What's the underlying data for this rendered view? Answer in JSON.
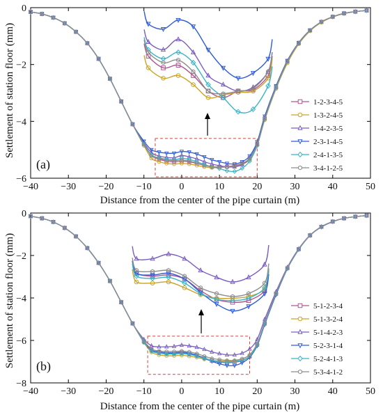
{
  "figure": {
    "xlabel": "Distance from the center of the pipe curtain (m)",
    "ylabel": "Settlement of station floor (mm)"
  },
  "chart_data": [
    {
      "type": "line",
      "panel_label": "(a)",
      "xlabel": "Distance from the center of the pipe curtain (m)",
      "ylabel": "Settlement of station floor (mm)",
      "xlim": [
        -40,
        50
      ],
      "ylim": [
        -6,
        0
      ],
      "xticks": [
        -40,
        -30,
        -20,
        -10,
        0,
        10,
        20,
        30,
        40,
        50
      ],
      "yticks": [
        0,
        -2,
        -4,
        -6
      ],
      "legend_position": "center-right",
      "highlight_box": {
        "x": [
          -7,
          20
        ],
        "y": [
          -4.6,
          -5.95
        ]
      },
      "inset": {
        "x_range": [
          -7,
          20
        ],
        "y_range": [
          -5.1,
          -5.8
        ],
        "series": [
          {
            "name": "1-2-3-4-5",
            "values": [
              -5.33,
              -5.42,
              -5.4,
              -5.48,
              -5.6,
              -5.65,
              -5.6,
              -5.59,
              -5.48
            ]
          },
          {
            "name": "1-3-2-4-5",
            "values": [
              -5.42,
              -5.5,
              -5.48,
              -5.55,
              -5.65,
              -5.63,
              -5.61,
              -5.6,
              -5.5
            ]
          },
          {
            "name": "1-4-2-3-5",
            "values": [
              -5.22,
              -5.28,
              -5.2,
              -5.3,
              -5.48,
              -5.55,
              -5.6,
              -5.57,
              -5.45
            ]
          },
          {
            "name": "2-3-1-4-5",
            "values": [
              -5.08,
              -5.12,
              -5.05,
              -5.1,
              -5.28,
              -5.42,
              -5.5,
              -5.46,
              -5.35
            ]
          },
          {
            "name": "2-4-1-3-5",
            "values": [
              -5.28,
              -5.35,
              -5.3,
              -5.38,
              -5.55,
              -5.65,
              -5.76,
              -5.74,
              -5.56
            ]
          },
          {
            "name": "3-4-1-2-5",
            "values": [
              -5.3,
              -5.38,
              -5.36,
              -5.45,
              -5.6,
              -5.62,
              -5.6,
              -5.58,
              -5.45
            ]
          }
        ]
      },
      "x": [
        -40,
        -37,
        -34,
        -31,
        -28,
        -25,
        -22,
        -19,
        -16,
        -13,
        -10,
        -8,
        -6,
        -4,
        -2,
        0,
        2,
        4,
        6,
        8,
        10,
        12,
        14,
        16,
        18,
        20,
        22,
        25,
        28,
        31,
        34,
        37,
        40,
        43,
        46,
        49
      ],
      "series": [
        {
          "name": "1-2-3-4-5",
          "color": "#b0538f",
          "marker": "square",
          "values": [
            -0.15,
            -0.22,
            -0.35,
            -0.55,
            -0.85,
            -1.25,
            -1.8,
            -2.5,
            -3.3,
            -4.1,
            -4.8,
            -5.2,
            -5.33,
            -5.4,
            -5.42,
            -5.4,
            -5.42,
            -5.48,
            -5.55,
            -5.6,
            -5.6,
            -5.59,
            -5.55,
            -5.48,
            -5.3,
            -4.8,
            -3.9,
            -2.8,
            -1.9,
            -1.25,
            -0.8,
            -0.5,
            -0.32,
            -0.2,
            -0.14,
            -0.1
          ]
        },
        {
          "name": "1-3-2-4-5",
          "color": "#c9a227",
          "marker": "circle",
          "values": [
            -0.15,
            -0.22,
            -0.35,
            -0.55,
            -0.85,
            -1.25,
            -1.8,
            -2.5,
            -3.3,
            -4.1,
            -4.85,
            -5.3,
            -5.42,
            -5.48,
            -5.5,
            -5.48,
            -5.5,
            -5.55,
            -5.6,
            -5.63,
            -5.62,
            -5.6,
            -5.58,
            -5.5,
            -5.35,
            -4.85,
            -3.95,
            -2.85,
            -1.95,
            -1.28,
            -0.82,
            -0.52,
            -0.33,
            -0.21,
            -0.14,
            -0.1
          ]
        },
        {
          "name": "1-4-2-3-5",
          "color": "#7a5cc0",
          "marker": "triangle",
          "values": [
            -0.15,
            -0.22,
            -0.35,
            -0.55,
            -0.85,
            -1.25,
            -1.8,
            -2.5,
            -3.3,
            -4.1,
            -4.75,
            -5.1,
            -5.22,
            -5.27,
            -5.28,
            -5.2,
            -5.25,
            -5.32,
            -5.42,
            -5.5,
            -5.56,
            -5.6,
            -5.6,
            -5.52,
            -5.3,
            -4.78,
            -3.88,
            -2.78,
            -1.88,
            -1.24,
            -0.8,
            -0.5,
            -0.32,
            -0.2,
            -0.14,
            -0.1
          ]
        },
        {
          "name": "2-3-1-4-5",
          "color": "#2e5bd6",
          "marker": "triangle-down",
          "values": [
            -0.15,
            -0.22,
            -0.35,
            -0.55,
            -0.85,
            -1.25,
            -1.8,
            -2.5,
            -3.3,
            -4.1,
            -4.7,
            -5.0,
            -5.08,
            -5.12,
            -5.12,
            -5.06,
            -5.08,
            -5.15,
            -5.25,
            -5.35,
            -5.42,
            -5.48,
            -5.5,
            -5.42,
            -5.22,
            -4.72,
            -3.82,
            -2.75,
            -1.86,
            -1.23,
            -0.79,
            -0.5,
            -0.32,
            -0.2,
            -0.14,
            -0.1
          ]
        },
        {
          "name": "2-4-1-3-5",
          "color": "#37b3c7",
          "marker": "diamond",
          "values": [
            -0.15,
            -0.22,
            -0.35,
            -0.55,
            -0.85,
            -1.25,
            -1.8,
            -2.5,
            -3.3,
            -4.1,
            -4.8,
            -5.18,
            -5.28,
            -5.33,
            -5.35,
            -5.3,
            -5.34,
            -5.42,
            -5.52,
            -5.6,
            -5.66,
            -5.74,
            -5.76,
            -5.65,
            -5.4,
            -4.85,
            -3.92,
            -2.82,
            -1.9,
            -1.25,
            -0.8,
            -0.5,
            -0.32,
            -0.2,
            -0.14,
            -0.1
          ]
        },
        {
          "name": "3-4-1-2-5",
          "color": "#8c8c8c",
          "marker": "hexagon",
          "values": [
            -0.15,
            -0.22,
            -0.35,
            -0.55,
            -0.85,
            -1.25,
            -1.8,
            -2.5,
            -3.3,
            -4.1,
            -4.82,
            -5.2,
            -5.3,
            -5.36,
            -5.38,
            -5.36,
            -5.4,
            -5.46,
            -5.55,
            -5.6,
            -5.62,
            -5.6,
            -5.57,
            -5.48,
            -5.3,
            -4.8,
            -3.9,
            -2.8,
            -1.9,
            -1.25,
            -0.8,
            -0.5,
            -0.32,
            -0.2,
            -0.14,
            -0.1
          ]
        }
      ]
    },
    {
      "type": "line",
      "panel_label": "(b)",
      "xlabel": "Distance from the center of the pipe curtain (m)",
      "ylabel": "Settlement of station floor (mm)",
      "xlim": [
        -40,
        50
      ],
      "ylim": [
        -8,
        0
      ],
      "xticks": [
        -40,
        -30,
        -20,
        -10,
        0,
        10,
        20,
        30,
        40,
        50
      ],
      "yticks": [
        0,
        -2,
        -4,
        -6,
        -8
      ],
      "legend_position": "center-right",
      "highlight_box": {
        "x": [
          -9,
          18
        ],
        "y": [
          -5.8,
          -7.6
        ]
      },
      "inset": {
        "x_range": [
          -9,
          18
        ],
        "y_range": [
          -6.1,
          -7.3
        ],
        "series": [
          {
            "name": "5-1-2-3-4",
            "values": [
              -6.55,
              -6.6,
              -6.58,
              -6.65,
              -6.85,
              -7.0,
              -7.05,
              -7.02,
              -6.85
            ]
          },
          {
            "name": "5-1-3-2-4",
            "values": [
              -6.7,
              -6.72,
              -6.7,
              -6.8,
              -6.92,
              -6.98,
              -6.98,
              -6.95,
              -6.82
            ]
          },
          {
            "name": "5-1-4-2-3",
            "values": [
              -6.3,
              -6.3,
              -6.22,
              -6.3,
              -6.5,
              -6.62,
              -6.7,
              -6.62,
              -6.4
            ]
          },
          {
            "name": "5-2-3-1-4",
            "values": [
              -6.55,
              -6.58,
              -6.55,
              -6.65,
              -6.88,
              -7.08,
              -7.2,
              -7.12,
              -6.9
            ]
          },
          {
            "name": "5-2-4-1-3",
            "values": [
              -6.6,
              -6.64,
              -6.62,
              -6.72,
              -6.9,
              -7.0,
              -7.02,
              -6.98,
              -6.8
            ]
          },
          {
            "name": "5-3-4-1-2",
            "values": [
              -6.5,
              -6.52,
              -6.5,
              -6.6,
              -6.8,
              -6.9,
              -6.95,
              -6.9,
              -6.72
            ]
          }
        ]
      },
      "x": [
        -40,
        -37,
        -34,
        -31,
        -28,
        -25,
        -22,
        -19,
        -16,
        -13,
        -10,
        -8,
        -6,
        -4,
        -2,
        0,
        2,
        4,
        6,
        8,
        10,
        12,
        14,
        16,
        18,
        20,
        22,
        25,
        28,
        31,
        34,
        37,
        40,
        43,
        46,
        49
      ],
      "series": [
        {
          "name": "5-1-2-3-4",
          "color": "#b0538f",
          "marker": "square",
          "values": [
            -0.15,
            -0.25,
            -0.42,
            -0.7,
            -1.1,
            -1.65,
            -2.35,
            -3.2,
            -4.2,
            -5.2,
            -6.05,
            -6.45,
            -6.55,
            -6.6,
            -6.6,
            -6.58,
            -6.62,
            -6.7,
            -6.82,
            -6.95,
            -7.02,
            -7.05,
            -7.03,
            -6.95,
            -6.75,
            -6.2,
            -5.2,
            -3.8,
            -2.6,
            -1.7,
            -1.05,
            -0.65,
            -0.4,
            -0.25,
            -0.17,
            -0.12
          ]
        },
        {
          "name": "5-1-3-2-4",
          "color": "#c9a227",
          "marker": "circle",
          "values": [
            -0.15,
            -0.25,
            -0.42,
            -0.7,
            -1.1,
            -1.65,
            -2.35,
            -3.2,
            -4.2,
            -5.2,
            -6.1,
            -6.55,
            -6.68,
            -6.72,
            -6.72,
            -6.7,
            -6.74,
            -6.8,
            -6.88,
            -6.94,
            -6.97,
            -6.98,
            -6.97,
            -6.92,
            -6.75,
            -6.2,
            -5.2,
            -3.8,
            -2.6,
            -1.7,
            -1.05,
            -0.65,
            -0.4,
            -0.25,
            -0.17,
            -0.12
          ]
        },
        {
          "name": "5-1-4-2-3",
          "color": "#7a5cc0",
          "marker": "triangle",
          "values": [
            -0.15,
            -0.25,
            -0.42,
            -0.7,
            -1.1,
            -1.65,
            -2.35,
            -3.2,
            -4.2,
            -5.2,
            -5.95,
            -6.25,
            -6.3,
            -6.3,
            -6.28,
            -6.22,
            -6.26,
            -6.32,
            -6.42,
            -6.54,
            -6.62,
            -6.68,
            -6.68,
            -6.6,
            -6.4,
            -5.95,
            -5.0,
            -3.7,
            -2.55,
            -1.68,
            -1.04,
            -0.64,
            -0.4,
            -0.25,
            -0.17,
            -0.12
          ]
        },
        {
          "name": "5-2-3-1-4",
          "color": "#2e5bd6",
          "marker": "triangle-down",
          "values": [
            -0.15,
            -0.25,
            -0.42,
            -0.7,
            -1.1,
            -1.65,
            -2.35,
            -3.2,
            -4.2,
            -5.2,
            -6.05,
            -6.45,
            -6.55,
            -6.58,
            -6.58,
            -6.55,
            -6.6,
            -6.7,
            -6.85,
            -6.98,
            -7.1,
            -7.18,
            -7.18,
            -7.05,
            -6.8,
            -6.25,
            -5.25,
            -3.85,
            -2.62,
            -1.72,
            -1.06,
            -0.66,
            -0.41,
            -0.25,
            -0.17,
            -0.12
          ]
        },
        {
          "name": "5-2-4-1-3",
          "color": "#37b3c7",
          "marker": "diamond",
          "values": [
            -0.15,
            -0.25,
            -0.42,
            -0.7,
            -1.1,
            -1.65,
            -2.35,
            -3.2,
            -4.2,
            -5.2,
            -6.08,
            -6.5,
            -6.6,
            -6.64,
            -6.64,
            -6.62,
            -6.66,
            -6.74,
            -6.85,
            -6.94,
            -7.0,
            -7.02,
            -7.0,
            -6.94,
            -6.75,
            -6.2,
            -5.2,
            -3.8,
            -2.6,
            -1.7,
            -1.05,
            -0.65,
            -0.4,
            -0.25,
            -0.17,
            -0.12
          ]
        },
        {
          "name": "5-3-4-1-2",
          "color": "#8c8c8c",
          "marker": "hexagon",
          "values": [
            -0.15,
            -0.25,
            -0.42,
            -0.7,
            -1.1,
            -1.65,
            -2.35,
            -3.2,
            -4.2,
            -5.2,
            -6.02,
            -6.4,
            -6.5,
            -6.52,
            -6.52,
            -6.5,
            -6.54,
            -6.62,
            -6.74,
            -6.85,
            -6.9,
            -6.94,
            -6.94,
            -6.86,
            -6.68,
            -6.15,
            -5.15,
            -3.78,
            -2.58,
            -1.7,
            -1.05,
            -0.65,
            -0.4,
            -0.25,
            -0.17,
            -0.12
          ]
        }
      ]
    }
  ]
}
